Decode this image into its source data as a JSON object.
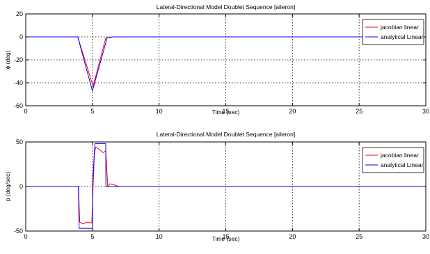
{
  "chart_data": [
    {
      "type": "line",
      "title": "Lateral-Directional Model Doublet Sequence [aileron]",
      "xlabel": "Time (sec)",
      "ylabel": "ϕ (deg)",
      "xlim": [
        0,
        30
      ],
      "ylim": [
        -60,
        20
      ],
      "xticks": [
        0,
        5,
        10,
        15,
        20,
        25,
        30
      ],
      "yticks": [
        20,
        0,
        -20,
        -40,
        -60
      ],
      "ytick_labels": [
        "20",
        "0",
        "-20",
        "-40",
        "-60"
      ],
      "grid": true,
      "legend_position": "top-right",
      "series": [
        {
          "name": "jacobian linear",
          "color": "#ff0000",
          "x": [
            0,
            3.9,
            5.05,
            6.0,
            6.5,
            30
          ],
          "y": [
            0,
            0,
            -43,
            -1,
            0,
            0
          ]
        },
        {
          "name": "analytical Linear",
          "color": "#0000ff",
          "x": [
            0,
            3.9,
            5.0,
            6.1,
            6.5,
            30
          ],
          "y": [
            0,
            0,
            -47,
            -1,
            0,
            0
          ]
        }
      ]
    },
    {
      "type": "line",
      "title": "Lateral-Directional Model Doublet Sequence [aileron]",
      "xlabel": "Time (sec)",
      "ylabel": "p (deg/sec)",
      "xlim": [
        0,
        30
      ],
      "ylim": [
        -50,
        50
      ],
      "xticks": [
        0,
        5,
        10,
        15,
        20,
        25,
        30
      ],
      "yticks": [
        50,
        0,
        -50
      ],
      "ytick_labels": [
        "50",
        "0",
        "-50"
      ],
      "grid": true,
      "legend_position": "top-right",
      "series": [
        {
          "name": "jacobian linear",
          "color": "#ff0000",
          "x": [
            0,
            3.95,
            4.05,
            4.3,
            4.6,
            4.95,
            5.05,
            5.15,
            5.25,
            5.5,
            5.8,
            6.0,
            6.15,
            6.3,
            6.6,
            7.0,
            7.5,
            30
          ],
          "y": [
            0,
            0,
            -40,
            -42,
            -40,
            -41,
            0,
            38,
            44,
            42,
            38,
            40,
            0,
            3,
            2,
            0,
            0,
            0
          ]
        },
        {
          "name": "analytical Linear",
          "color": "#0000ff",
          "x": [
            0,
            3.95,
            4.0,
            5.0,
            5.01,
            5.15,
            5.2,
            6.0,
            6.01,
            30
          ],
          "y": [
            0,
            0,
            -47,
            -47,
            0,
            40,
            48,
            48,
            0,
            0
          ]
        }
      ]
    }
  ]
}
